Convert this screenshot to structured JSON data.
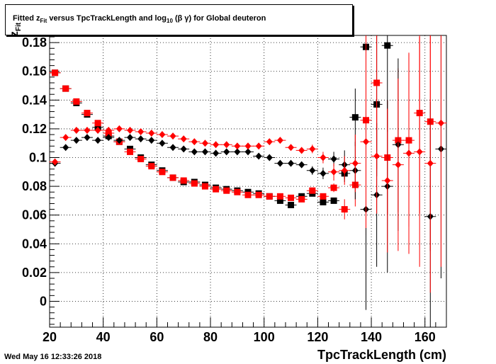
{
  "title": {
    "prefix": "Fitted  z",
    "sub1": "Fit",
    "middle": "  versus TpcTrackLength and log",
    "sub2": "10",
    "suffix": " (β γ) for Global deuteron"
  },
  "timestamp": "Wed May 16 12:33:26 2018",
  "axes": {
    "xlabel": "TpcTrackLength (cm)",
    "ylabel_main": "z",
    "ylabel_sub": "Fit"
  },
  "colors": {
    "black": "#000000",
    "red": "#ff0000"
  },
  "chart_data": {
    "type": "scatter",
    "xlim": [
      20,
      168
    ],
    "ylim": [
      -0.018,
      0.185
    ],
    "x_ticks": [
      20,
      40,
      60,
      80,
      100,
      120,
      140,
      160
    ],
    "y_ticks": [
      0,
      0.02,
      0.04,
      0.06,
      0.08,
      0.1,
      0.12,
      0.14,
      0.16,
      0.18
    ],
    "x_tick_labels": [
      "20",
      "40",
      "60",
      "80",
      "100",
      "120",
      "140",
      "160"
    ],
    "y_tick_labels": [
      "0",
      "0.02",
      "0.04",
      "0.06",
      "0.08",
      "0.1",
      "0.12",
      "0.14",
      "0.16",
      "0.18"
    ],
    "grid": true,
    "series": [
      {
        "color": "black",
        "marker": "square",
        "x": [
          22,
          26,
          30,
          34,
          38,
          42,
          46,
          50,
          54,
          58,
          62,
          66,
          70,
          74,
          78,
          82,
          86,
          90,
          94,
          98,
          102,
          106,
          110,
          114,
          118,
          122,
          126,
          130,
          134,
          138,
          142,
          146
        ],
        "y": [
          0.159,
          0.148,
          0.138,
          0.13,
          0.121,
          0.115,
          0.111,
          0.106,
          0.1,
          0.095,
          0.091,
          0.086,
          0.083,
          0.083,
          0.081,
          0.079,
          0.078,
          0.077,
          0.076,
          0.075,
          0.073,
          0.07,
          0.067,
          0.073,
          0.075,
          0.069,
          0.07,
          0.089,
          0.128,
          0.177,
          0.137,
          0.178
        ],
        "err": [
          0.001,
          0.001,
          0.001,
          0.001,
          0.001,
          0.001,
          0.001,
          0.001,
          0.001,
          0.001,
          0.001,
          0.001,
          0.001,
          0.001,
          0.001,
          0.001,
          0.001,
          0.001,
          0.001,
          0.001,
          0.001,
          0.001,
          0.001,
          0.001,
          0.001,
          0.001,
          0.002,
          0.006,
          0.02,
          0.06,
          0.05,
          0.06
        ]
      },
      {
        "color": "red",
        "marker": "square",
        "x": [
          22,
          26,
          30,
          34,
          38,
          42,
          46,
          50,
          54,
          58,
          62,
          66,
          70,
          74,
          78,
          82,
          86,
          90,
          94,
          98,
          102,
          106,
          110,
          114,
          118,
          122,
          126,
          130,
          134,
          138,
          142,
          146,
          150,
          154,
          158,
          162
        ],
        "y": [
          0.159,
          0.148,
          0.139,
          0.131,
          0.124,
          0.117,
          0.111,
          0.104,
          0.099,
          0.094,
          0.09,
          0.086,
          0.084,
          0.082,
          0.08,
          0.078,
          0.077,
          0.076,
          0.074,
          0.074,
          0.073,
          0.073,
          0.072,
          0.071,
          0.077,
          0.073,
          0.079,
          0.064,
          0.081,
          0.126,
          0.152,
          0.1,
          0.112,
          0.112,
          0.131,
          0.125
        ],
        "err": [
          0.001,
          0.001,
          0.001,
          0.001,
          0.001,
          0.001,
          0.001,
          0.001,
          0.001,
          0.001,
          0.001,
          0.001,
          0.001,
          0.001,
          0.001,
          0.001,
          0.001,
          0.001,
          0.001,
          0.001,
          0.001,
          0.001,
          0.001,
          0.001,
          0.002,
          0.002,
          0.003,
          0.007,
          0.015,
          0.08,
          0.06,
          0.04,
          0.05,
          0.06,
          0.07,
          0.09
        ]
      },
      {
        "color": "black",
        "marker": "diamond",
        "x": [
          22,
          26,
          30,
          34,
          38,
          42,
          46,
          50,
          54,
          58,
          62,
          66,
          70,
          74,
          78,
          82,
          86,
          90,
          94,
          98,
          102,
          106,
          110,
          114,
          118,
          122,
          126,
          130,
          134,
          138,
          142,
          146,
          150,
          162,
          166
        ],
        "y": [
          0.096,
          0.107,
          0.112,
          0.114,
          0.112,
          0.114,
          0.112,
          0.114,
          0.113,
          0.112,
          0.11,
          0.107,
          0.106,
          0.104,
          0.104,
          0.103,
          0.104,
          0.104,
          0.104,
          0.101,
          0.1,
          0.096,
          0.096,
          0.095,
          0.091,
          0.089,
          0.099,
          0.095,
          0.091,
          0.064,
          0.074,
          0.08,
          0.109,
          0.059,
          0.106
        ],
        "err": [
          0.001,
          0.001,
          0.001,
          0.001,
          0.001,
          0.001,
          0.001,
          0.001,
          0.001,
          0.001,
          0.001,
          0.001,
          0.001,
          0.001,
          0.001,
          0.001,
          0.001,
          0.001,
          0.001,
          0.001,
          0.001,
          0.002,
          0.002,
          0.002,
          0.003,
          0.004,
          0.005,
          0.01,
          0.02,
          0.07,
          0.05,
          0.06,
          0.06,
          0.08,
          0.09
        ]
      },
      {
        "color": "red",
        "marker": "diamond",
        "x": [
          22,
          26,
          30,
          34,
          38,
          42,
          46,
          50,
          54,
          58,
          62,
          66,
          70,
          74,
          78,
          82,
          86,
          90,
          94,
          98,
          102,
          106,
          110,
          114,
          118,
          122,
          126,
          130,
          134,
          138,
          142,
          146,
          150,
          154,
          158,
          162,
          166
        ],
        "y": [
          0.097,
          0.114,
          0.119,
          0.119,
          0.119,
          0.119,
          0.12,
          0.119,
          0.118,
          0.117,
          0.116,
          0.115,
          0.113,
          0.111,
          0.11,
          0.109,
          0.109,
          0.108,
          0.108,
          0.108,
          0.111,
          0.112,
          0.107,
          0.105,
          0.106,
          0.1,
          0.09,
          0.091,
          0.096,
          0.111,
          0.101,
          0.084,
          0.095,
          0.103,
          0.104,
          0.096,
          0.124
        ],
        "err": [
          0.001,
          0.001,
          0.001,
          0.001,
          0.001,
          0.001,
          0.001,
          0.001,
          0.001,
          0.001,
          0.001,
          0.001,
          0.001,
          0.001,
          0.001,
          0.001,
          0.001,
          0.001,
          0.001,
          0.001,
          0.001,
          0.002,
          0.002,
          0.002,
          0.003,
          0.004,
          0.006,
          0.01,
          0.02,
          0.06,
          0.04,
          0.05,
          0.06,
          0.07,
          0.08,
          0.09,
          0.1
        ]
      }
    ]
  }
}
